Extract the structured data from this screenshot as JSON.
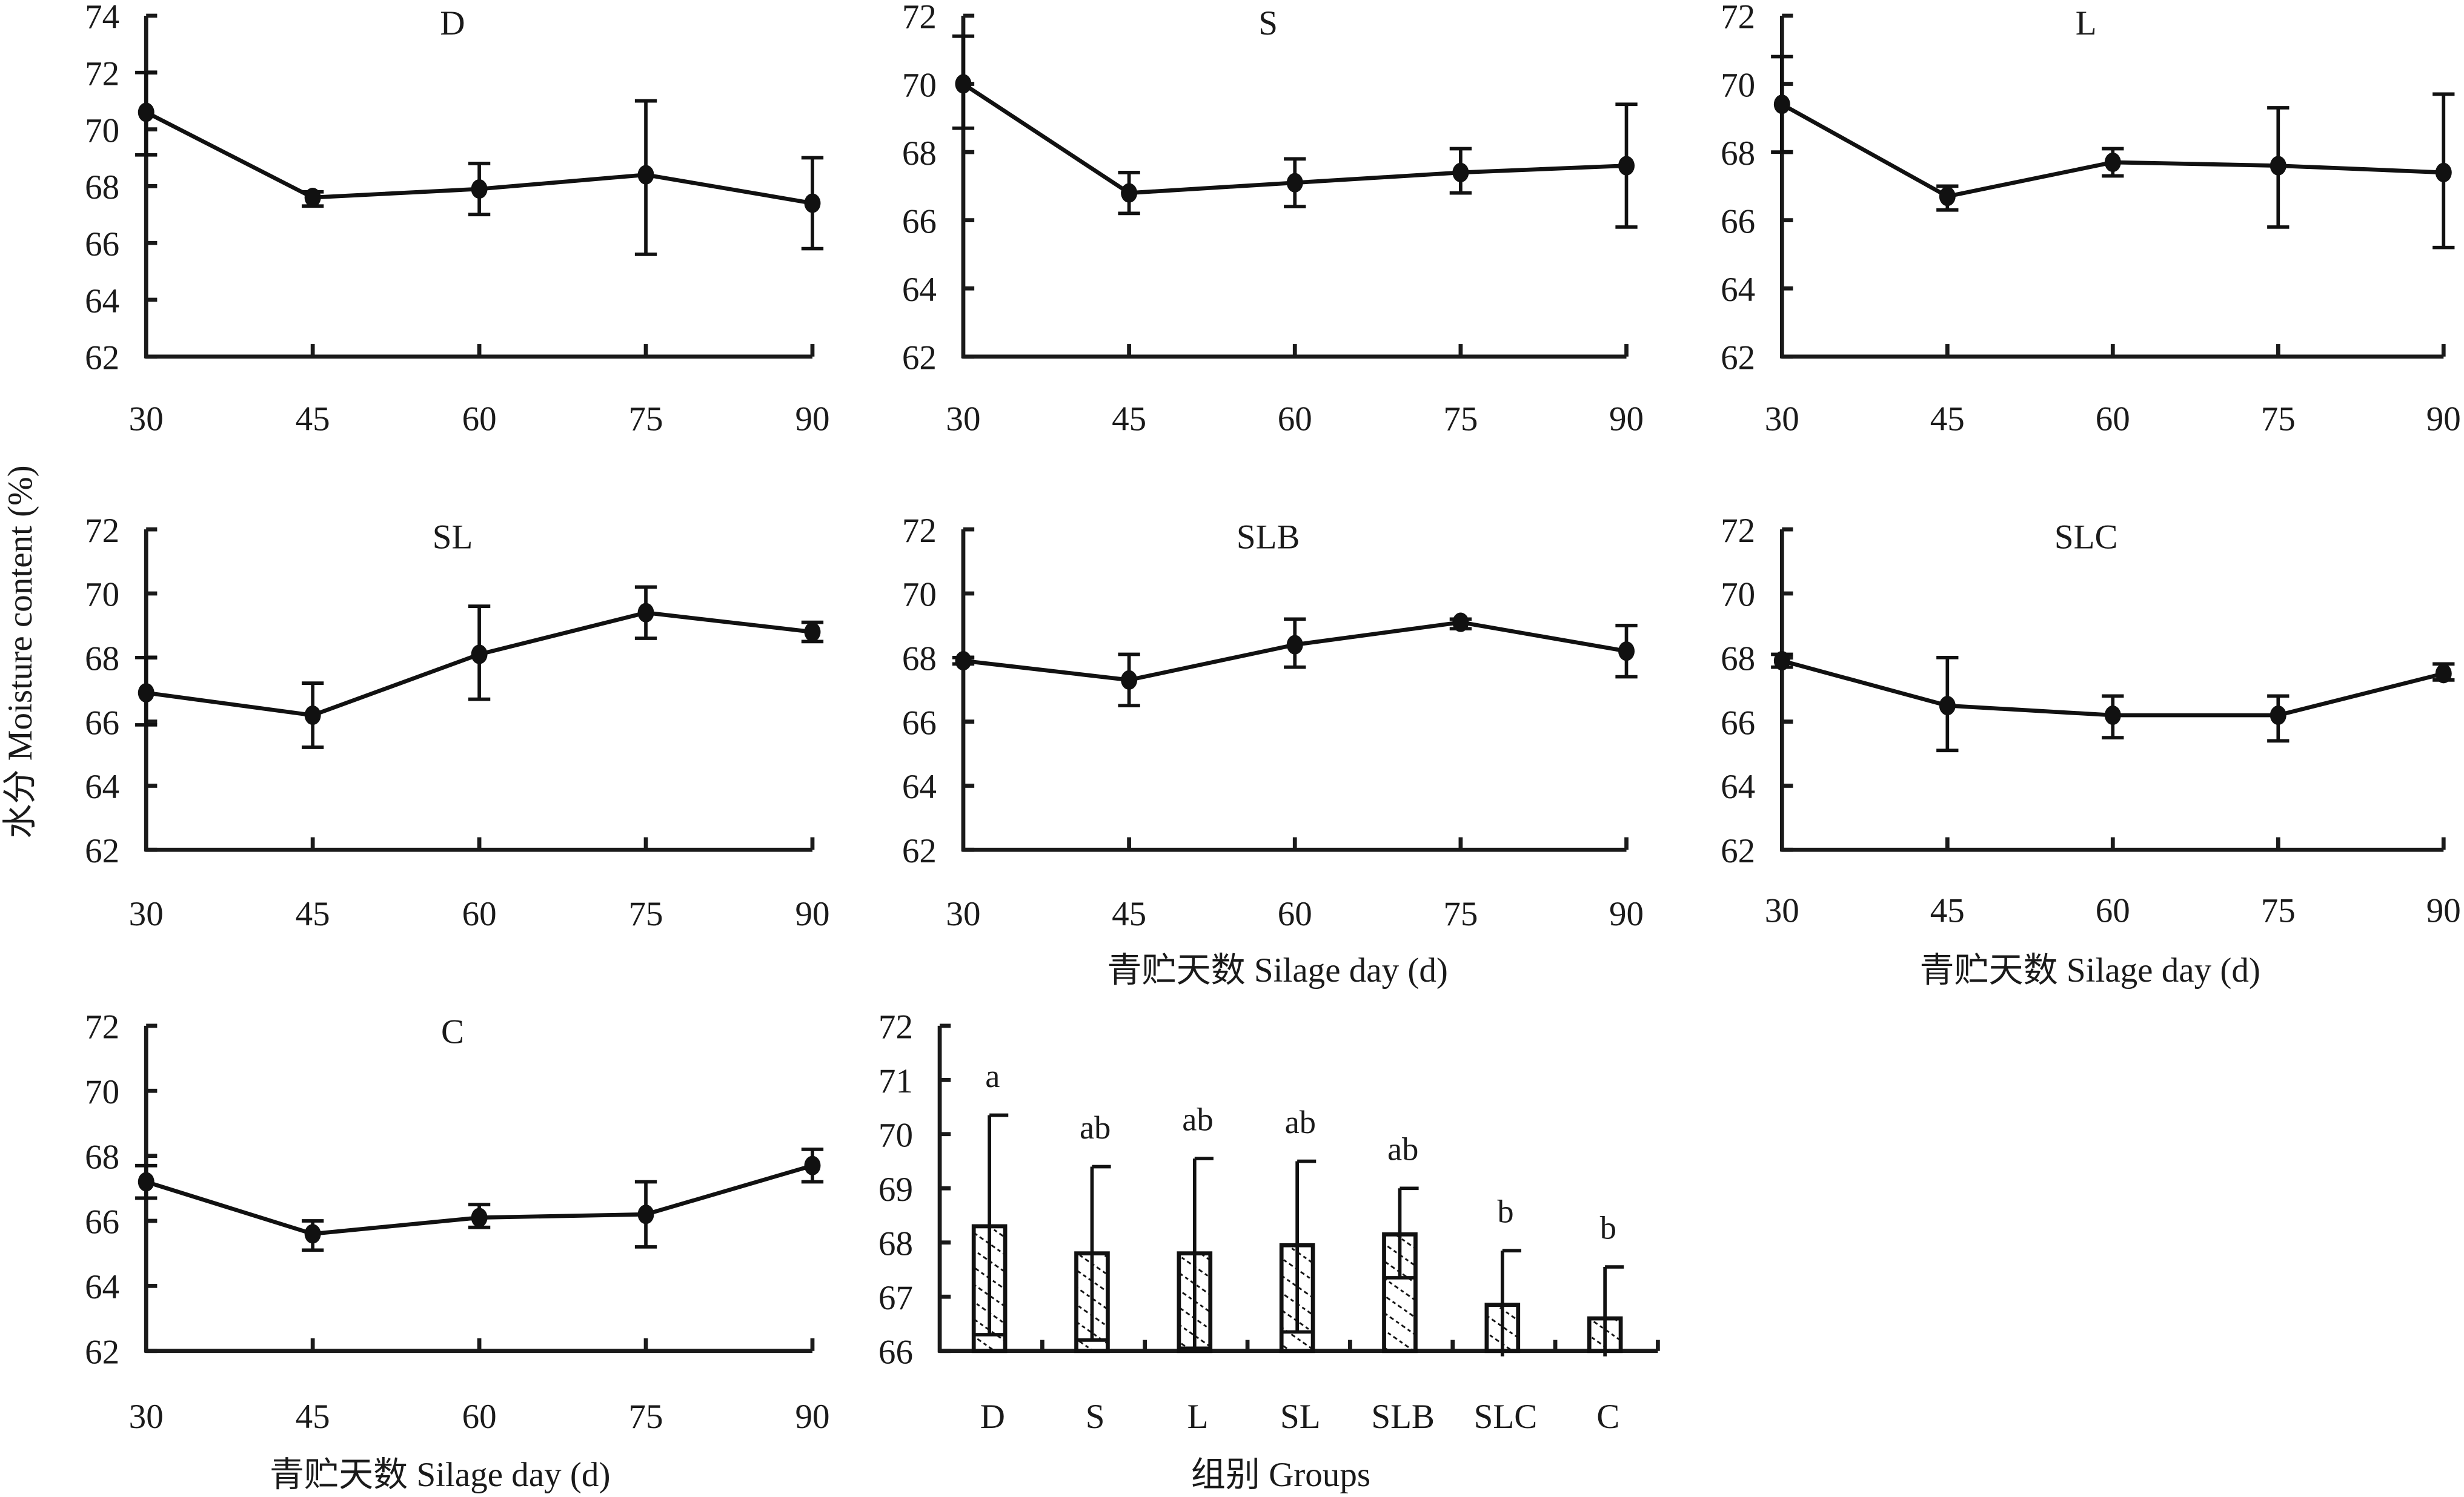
{
  "figure": {
    "y_axis_title": "水分 Moisture content (%)",
    "x_axis_title_line": "青贮天数 Silage day (d)",
    "x_axis_title_bar": "组别 Groups",
    "colors": {
      "ink": "#111111",
      "background": "#ffffff",
      "bar_fill": "#ffffff"
    }
  },
  "chart_data": [
    {
      "type": "line",
      "title": "D",
      "x": [
        30,
        45,
        60,
        75,
        90
      ],
      "xticklabels": [
        "30",
        "45",
        "60",
        "75",
        "90"
      ],
      "ylim": [
        62,
        74
      ],
      "yticks": [
        62,
        64,
        66,
        68,
        70,
        72,
        74
      ],
      "values": [
        70.6,
        67.6,
        67.9,
        68.4,
        67.4
      ],
      "err_low": [
        69.1,
        67.3,
        67.0,
        65.6,
        65.8
      ],
      "err_high": [
        72.0,
        67.8,
        68.8,
        71.0,
        69.0
      ],
      "xlabel": "",
      "ylabel": "水分 Moisture content (%)"
    },
    {
      "type": "line",
      "title": "S",
      "x": [
        30,
        45,
        60,
        75,
        90
      ],
      "xticklabels": [
        "30",
        "45",
        "60",
        "75",
        "90"
      ],
      "ylim": [
        62,
        72
      ],
      "yticks": [
        62,
        64,
        66,
        68,
        70,
        72
      ],
      "values": [
        70.0,
        66.8,
        67.1,
        67.4,
        67.6
      ],
      "err_low": [
        68.7,
        66.2,
        66.4,
        66.8,
        65.8
      ],
      "err_high": [
        71.4,
        67.4,
        67.8,
        68.1,
        69.4
      ],
      "xlabel": "",
      "ylabel": ""
    },
    {
      "type": "line",
      "title": "L",
      "x": [
        30,
        45,
        60,
        75,
        90
      ],
      "xticklabels": [
        "30",
        "45",
        "60",
        "75",
        "90"
      ],
      "ylim": [
        62,
        72
      ],
      "yticks": [
        62,
        64,
        66,
        68,
        70,
        72
      ],
      "values": [
        69.4,
        66.7,
        67.7,
        67.6,
        67.4
      ],
      "err_low": [
        68.0,
        66.3,
        67.3,
        65.8,
        65.2
      ],
      "err_high": [
        70.8,
        67.0,
        68.1,
        69.3,
        69.7
      ],
      "xlabel": "",
      "ylabel": ""
    },
    {
      "type": "line",
      "title": "SL",
      "x": [
        30,
        45,
        60,
        75,
        90
      ],
      "xticklabels": [
        "30",
        "45",
        "60",
        "75",
        "90"
      ],
      "ylim": [
        62,
        72
      ],
      "yticks": [
        62,
        64,
        66,
        68,
        70,
        72
      ],
      "values": [
        66.9,
        66.2,
        68.1,
        69.4,
        68.8
      ],
      "err_low": [
        65.9,
        65.2,
        66.7,
        68.6,
        68.5
      ],
      "err_high": [
        68.0,
        67.2,
        69.6,
        70.2,
        69.1
      ],
      "xlabel": "",
      "ylabel": ""
    },
    {
      "type": "line",
      "title": "SLB",
      "x": [
        30,
        45,
        60,
        75,
        90
      ],
      "xticklabels": [
        "30",
        "45",
        "60",
        "75",
        "90"
      ],
      "ylim": [
        62,
        72
      ],
      "yticks": [
        62,
        64,
        66,
        68,
        70,
        72
      ],
      "values": [
        67.9,
        67.3,
        68.4,
        69.1,
        68.2
      ],
      "err_low": [
        67.8,
        66.5,
        67.7,
        68.9,
        67.4
      ],
      "err_high": [
        68.0,
        68.1,
        69.2,
        69.2,
        69.0
      ],
      "xlabel": "青贮天数 Silage day (d)",
      "ylabel": ""
    },
    {
      "type": "line",
      "title": "SLC",
      "x": [
        30,
        45,
        60,
        75,
        90
      ],
      "xticklabels": [
        "30",
        "45",
        "60",
        "75",
        "90"
      ],
      "ylim": [
        62,
        72
      ],
      "yticks": [
        62,
        64,
        66,
        68,
        70,
        72
      ],
      "values": [
        67.9,
        66.5,
        66.2,
        66.2,
        67.5
      ],
      "err_low": [
        67.7,
        65.1,
        65.5,
        65.4,
        67.3
      ],
      "err_high": [
        68.1,
        68.0,
        66.8,
        66.8,
        67.8
      ],
      "xlabel": "青贮天数 Silage day (d)",
      "ylabel": ""
    },
    {
      "type": "line",
      "title": "C",
      "x": [
        30,
        45,
        60,
        75,
        90
      ],
      "xticklabels": [
        "30",
        "45",
        "60",
        "75",
        "90"
      ],
      "ylim": [
        62,
        72
      ],
      "yticks": [
        62,
        64,
        66,
        68,
        70,
        72
      ],
      "values": [
        67.2,
        65.6,
        66.1,
        66.2,
        67.7
      ],
      "err_low": [
        66.7,
        65.1,
        65.8,
        65.2,
        67.2
      ],
      "err_high": [
        67.7,
        66.0,
        66.5,
        67.2,
        68.2
      ],
      "xlabel": "青贮天数 Silage day (d)",
      "ylabel": ""
    },
    {
      "type": "bar",
      "title": "",
      "categories": [
        "D",
        "S",
        "L",
        "SL",
        "SLB",
        "SLC",
        "C"
      ],
      "values": [
        68.3,
        67.8,
        67.8,
        67.95,
        68.15,
        66.85,
        66.6
      ],
      "err_low": [
        66.3,
        66.2,
        66.05,
        66.35,
        67.35,
        65.9,
        65.9
      ],
      "err_high": [
        70.35,
        69.4,
        69.55,
        69.5,
        69.0,
        67.85,
        67.55
      ],
      "significance": [
        "a",
        "ab",
        "ab",
        "ab",
        "ab",
        "b",
        "b"
      ],
      "ylim": [
        66,
        72
      ],
      "yticks": [
        66,
        67,
        68,
        69,
        70,
        71,
        72
      ],
      "xlabel": "组别 Groups",
      "ylabel": "",
      "bar_pattern": "diagonal-hatch"
    }
  ]
}
